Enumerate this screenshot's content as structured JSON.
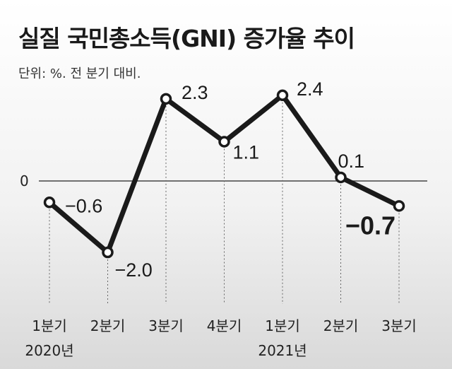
{
  "title": "실질 국민총소득(GNI) 증가율 추이",
  "unit": "단위: %. 전 분기 대비.",
  "chart_data": {
    "type": "line",
    "title": "실질 국민총소득(GNI) 증가율 추이",
    "ylabel": "단위: %. 전 분기 대비.",
    "categories": [
      "1분기",
      "2분기",
      "3분기",
      "4분기",
      "1분기",
      "2분기",
      "3분기"
    ],
    "years": [
      {
        "label": "2020년",
        "start": 0
      },
      {
        "label": "2021년",
        "start": 4
      }
    ],
    "series": [
      {
        "name": "실질 GNI 증가율",
        "values": [
          -0.6,
          -2.0,
          2.3,
          1.1,
          2.4,
          0.1,
          -0.7
        ],
        "labels": [
          "−0.6",
          "−2.0",
          "2.3",
          "1.1",
          "2.4",
          "0.1",
          "−0.7"
        ]
      }
    ],
    "zero_label": "0",
    "highlight_last": true,
    "ylim": [
      -3.2,
      3.4
    ],
    "grid": false
  }
}
